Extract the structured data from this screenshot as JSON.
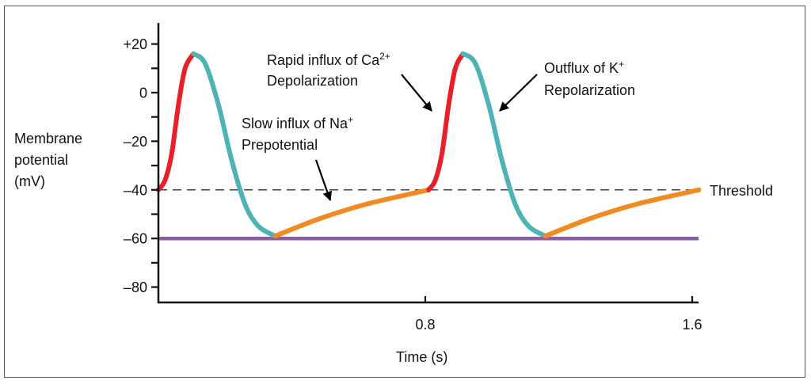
{
  "chart_data": {
    "type": "line",
    "title": "",
    "xlabel": "Time (s)",
    "ylabel": [
      "Membrane",
      "potential",
      "(mV)"
    ],
    "xlim": [
      0,
      1.62
    ],
    "ylim": [
      -85,
      27
    ],
    "x_ticks": [
      {
        "value": 0.8,
        "label": "0.8"
      },
      {
        "value": 1.6,
        "label": "1.6"
      }
    ],
    "y_ticks": [
      {
        "value": 20,
        "label": "+20"
      },
      {
        "value": 10,
        "label": ""
      },
      {
        "value": 0,
        "label": "0"
      },
      {
        "value": -10,
        "label": ""
      },
      {
        "value": -20,
        "label": "–20"
      },
      {
        "value": -30,
        "label": ""
      },
      {
        "value": -40,
        "label": "–40"
      },
      {
        "value": -50,
        "label": ""
      },
      {
        "value": -60,
        "label": "–60"
      },
      {
        "value": -70,
        "label": ""
      },
      {
        "value": -80,
        "label": "–80"
      }
    ],
    "reference_lines": [
      {
        "name": "threshold",
        "value": -40,
        "label": "Threshold",
        "style": "dashed",
        "color": "#333333"
      },
      {
        "name": "resting",
        "value": -60,
        "label": "",
        "style": "solid",
        "color": "#8E5BA6"
      }
    ],
    "series": [
      {
        "name": "depolarization-1",
        "phase": "depolarization",
        "color": "#E8202A",
        "points": [
          [
            0.0,
            -40
          ],
          [
            0.02,
            -36
          ],
          [
            0.04,
            -25
          ],
          [
            0.06,
            -5
          ],
          [
            0.08,
            10
          ],
          [
            0.105,
            16
          ]
        ]
      },
      {
        "name": "repolarization-1",
        "phase": "repolarization",
        "color": "#4DB3B5",
        "points": [
          [
            0.105,
            16
          ],
          [
            0.14,
            12
          ],
          [
            0.18,
            -5
          ],
          [
            0.22,
            -28
          ],
          [
            0.26,
            -46
          ],
          [
            0.3,
            -55
          ],
          [
            0.35,
            -59
          ]
        ]
      },
      {
        "name": "prepotential-1",
        "phase": "prepotential",
        "color": "#F28A22",
        "points": [
          [
            0.35,
            -59
          ],
          [
            0.48,
            -52
          ],
          [
            0.62,
            -46
          ],
          [
            0.81,
            -40
          ]
        ]
      },
      {
        "name": "depolarization-2",
        "phase": "depolarization",
        "color": "#E8202A",
        "points": [
          [
            0.81,
            -40
          ],
          [
            0.83,
            -36
          ],
          [
            0.85,
            -25
          ],
          [
            0.87,
            -5
          ],
          [
            0.89,
            10
          ],
          [
            0.913,
            16
          ]
        ]
      },
      {
        "name": "repolarization-2",
        "phase": "repolarization",
        "color": "#4DB3B5",
        "points": [
          [
            0.913,
            16
          ],
          [
            0.95,
            12
          ],
          [
            0.99,
            -5
          ],
          [
            1.03,
            -28
          ],
          [
            1.07,
            -46
          ],
          [
            1.11,
            -55
          ],
          [
            1.16,
            -59
          ]
        ]
      },
      {
        "name": "prepotential-2",
        "phase": "prepotential",
        "color": "#F28A22",
        "points": [
          [
            1.16,
            -59
          ],
          [
            1.29,
            -52
          ],
          [
            1.43,
            -46
          ],
          [
            1.62,
            -40
          ]
        ]
      }
    ],
    "annotations": [
      {
        "name": "calcium",
        "lines": [
          "Rapid influx of Ca",
          "Depolarization"
        ],
        "superscript": "2+"
      },
      {
        "name": "potassium",
        "lines": [
          "Outflux of K",
          "Repolarization"
        ],
        "superscript": "+"
      },
      {
        "name": "sodium",
        "lines": [
          "Slow influx of Na",
          "Prepotential"
        ],
        "superscript": "+"
      }
    ],
    "grid": false,
    "legend": "none"
  },
  "colors": {
    "axis": "#111111",
    "frame": "#555555"
  }
}
